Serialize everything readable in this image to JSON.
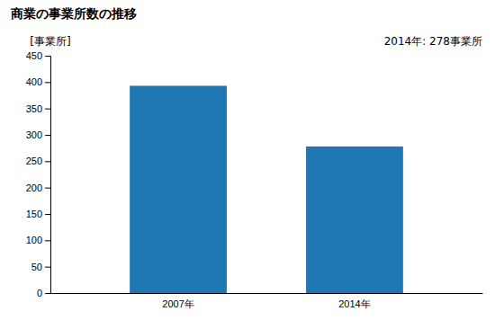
{
  "chart_data": {
    "type": "bar",
    "title": "商業の事業所数の推移",
    "ylabel": "[事業所]",
    "annotation": "2014年: 278事業所",
    "categories": [
      "2007年",
      "2014年"
    ],
    "values": [
      393,
      278
    ],
    "ylim": [
      0,
      450
    ],
    "yticks": [
      0,
      50,
      100,
      150,
      200,
      250,
      300,
      350,
      400,
      450
    ],
    "grid": false
  }
}
